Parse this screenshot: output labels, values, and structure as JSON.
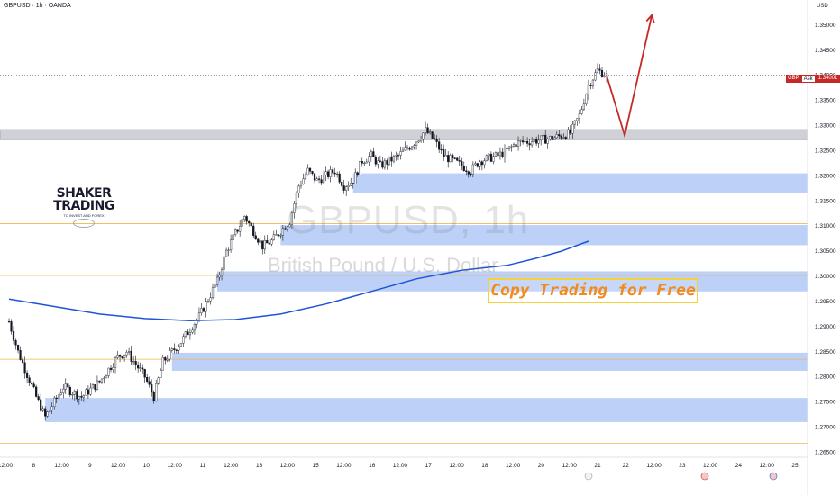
{
  "header": {
    "symbol_line": "GBPUSD · 1h · OANDA",
    "currency": "USD"
  },
  "watermark": {
    "symbol": "GBPUSD, 1h",
    "description": "British Pound / U.S. Dollar"
  },
  "logo": {
    "line1": "SHAKER",
    "line2": "TRADING",
    "tagline": "TO INVEST AND FOREX"
  },
  "promo": {
    "text": "Copy Trading for Free"
  },
  "ask_badge": {
    "symbol": "GBP",
    "label": "Ask",
    "price": "1.34001"
  },
  "colors": {
    "zone_fill": "#bcd0f8",
    "zone_gray": "#cfd1d6",
    "level_line": "#f0b64d",
    "ma_line": "#1e54d6",
    "candle": "#131722",
    "arrow": "#c62828"
  },
  "chart_data": {
    "type": "candlestick",
    "symbol": "GBPUSD",
    "timeframe": "1h",
    "y_axis": {
      "min": 1.264,
      "max": 1.355,
      "ticks": [
        "1.35000",
        "1.34500",
        "1.34000",
        "1.33500",
        "1.33000",
        "1.32500",
        "1.32000",
        "1.31500",
        "1.31000",
        "1.30500",
        "1.30000",
        "1.29500",
        "1.29000",
        "1.28500",
        "1.28000",
        "1.27500",
        "1.27000",
        "1.26500"
      ]
    },
    "x_axis": {
      "ticks": [
        "12:00",
        "8",
        "12:00",
        "9",
        "12:00",
        "10",
        "12:00",
        "11",
        "12:00",
        "13",
        "12:00",
        "15",
        "12:00",
        "16",
        "12:00",
        "17",
        "12:00",
        "18",
        "12:00",
        "20",
        "12:00",
        "21",
        "22",
        "12:00",
        "23",
        "12:00",
        "24",
        "12:00",
        "25"
      ]
    },
    "price_path": [
      {
        "t": 0,
        "p": 1.291
      },
      {
        "t": 1,
        "p": 1.285
      },
      {
        "t": 3,
        "p": 1.276
      },
      {
        "t": 4,
        "p": 1.272
      },
      {
        "t": 6,
        "p": 1.278
      },
      {
        "t": 8,
        "p": 1.276
      },
      {
        "t": 10,
        "p": 1.279
      },
      {
        "t": 12,
        "p": 1.284
      },
      {
        "t": 13,
        "p": 1.285
      },
      {
        "t": 15,
        "p": 1.28
      },
      {
        "t": 16,
        "p": 1.276
      },
      {
        "t": 17,
        "p": 1.283
      },
      {
        "t": 19,
        "p": 1.287
      },
      {
        "t": 21,
        "p": 1.292
      },
      {
        "t": 23,
        "p": 1.299
      },
      {
        "t": 24,
        "p": 1.305
      },
      {
        "t": 26,
        "p": 1.312
      },
      {
        "t": 27,
        "p": 1.309
      },
      {
        "t": 28,
        "p": 1.306
      },
      {
        "t": 29,
        "p": 1.307
      },
      {
        "t": 31,
        "p": 1.311
      },
      {
        "t": 32,
        "p": 1.318
      },
      {
        "t": 33,
        "p": 1.321
      },
      {
        "t": 34,
        "p": 1.319
      },
      {
        "t": 36,
        "p": 1.321
      },
      {
        "t": 37,
        "p": 1.318
      },
      {
        "t": 38,
        "p": 1.319
      },
      {
        "t": 39,
        "p": 1.323
      },
      {
        "t": 40,
        "p": 1.324
      },
      {
        "t": 41,
        "p": 1.322
      },
      {
        "t": 43,
        "p": 1.324
      },
      {
        "t": 45,
        "p": 1.327
      },
      {
        "t": 46,
        "p": 1.329
      },
      {
        "t": 47,
        "p": 1.327
      },
      {
        "t": 48,
        "p": 1.324
      },
      {
        "t": 50,
        "p": 1.322
      },
      {
        "t": 51,
        "p": 1.321
      },
      {
        "t": 52,
        "p": 1.323
      },
      {
        "t": 54,
        "p": 1.324
      },
      {
        "t": 55,
        "p": 1.325
      },
      {
        "t": 56,
        "p": 1.3265
      },
      {
        "t": 58,
        "p": 1.327
      },
      {
        "t": 60,
        "p": 1.3275
      },
      {
        "t": 62,
        "p": 1.3285
      },
      {
        "t": 63,
        "p": 1.332
      },
      {
        "t": 64,
        "p": 1.338
      },
      {
        "t": 65,
        "p": 1.341
      },
      {
        "t": 66,
        "p": 1.34
      }
    ],
    "zones": [
      {
        "top": 1.3292,
        "bottom": 1.3272,
        "style": "gray",
        "from": 0
      },
      {
        "top": 1.3205,
        "bottom": 1.3165,
        "style": "blue",
        "from": 38
      },
      {
        "top": 1.3102,
        "bottom": 1.3062,
        "style": "blue",
        "from": 30
      },
      {
        "top": 1.301,
        "bottom": 1.297,
        "style": "blue",
        "from": 23
      },
      {
        "top": 1.2848,
        "bottom": 1.2812,
        "style": "blue",
        "from": 18
      },
      {
        "top": 1.2758,
        "bottom": 1.271,
        "style": "blue",
        "from": 4
      }
    ],
    "levels": [
      1.3273,
      1.3105,
      1.3002,
      1.2835,
      1.2668
    ],
    "current_price": 1.34001,
    "moving_average": [
      {
        "t": 0,
        "p": 1.2955
      },
      {
        "t": 5,
        "p": 1.294
      },
      {
        "t": 10,
        "p": 1.2925
      },
      {
        "t": 15,
        "p": 1.2916
      },
      {
        "t": 20,
        "p": 1.2912
      },
      {
        "t": 25,
        "p": 1.2914
      },
      {
        "t": 30,
        "p": 1.2925
      },
      {
        "t": 35,
        "p": 1.2945
      },
      {
        "t": 40,
        "p": 1.297
      },
      {
        "t": 45,
        "p": 1.2995
      },
      {
        "t": 50,
        "p": 1.3012
      },
      {
        "t": 55,
        "p": 1.3022
      },
      {
        "t": 58,
        "p": 1.3035
      },
      {
        "t": 61,
        "p": 1.305
      },
      {
        "t": 64,
        "p": 1.307
      }
    ],
    "projection": [
      {
        "t": 66,
        "p": 1.34
      },
      {
        "t": 68,
        "p": 1.328
      },
      {
        "t": 71,
        "p": 1.352
      }
    ]
  }
}
